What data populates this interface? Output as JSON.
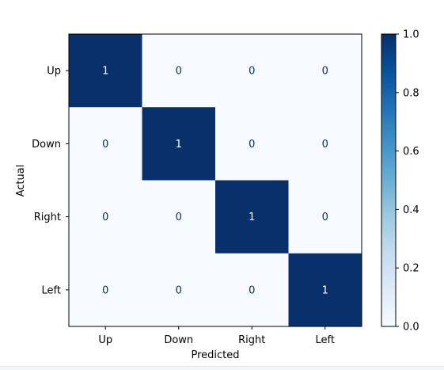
{
  "chart_data": {
    "type": "heatmap",
    "title": "",
    "xlabel": "Predicted",
    "ylabel": "Actual",
    "x_categories": [
      "Up",
      "Down",
      "Right",
      "Left"
    ],
    "y_categories": [
      "Up",
      "Down",
      "Right",
      "Left"
    ],
    "values": [
      [
        1,
        0,
        0,
        0
      ],
      [
        0,
        1,
        0,
        0
      ],
      [
        0,
        0,
        1,
        0
      ],
      [
        0,
        0,
        0,
        1
      ]
    ],
    "cell_labels": [
      [
        "1",
        "0",
        "0",
        "0"
      ],
      [
        "0",
        "1",
        "0",
        "0"
      ],
      [
        "0",
        "0",
        "1",
        "0"
      ],
      [
        "0",
        "0",
        "0",
        "1"
      ]
    ],
    "colormap": "Blues",
    "color_low": "#f7fbff",
    "color_high": "#08306b",
    "text_color_dark_cell": "#ffffff",
    "text_color_light_cell": "#08306b",
    "colorbar": {
      "vmin": 0.0,
      "vmax": 1.0,
      "ticks": [
        0.0,
        0.2,
        0.4,
        0.6,
        0.8,
        1.0
      ],
      "tick_labels": [
        "0.0",
        "0.2",
        "0.4",
        "0.6",
        "0.8",
        "1.0"
      ]
    },
    "grid": false
  }
}
